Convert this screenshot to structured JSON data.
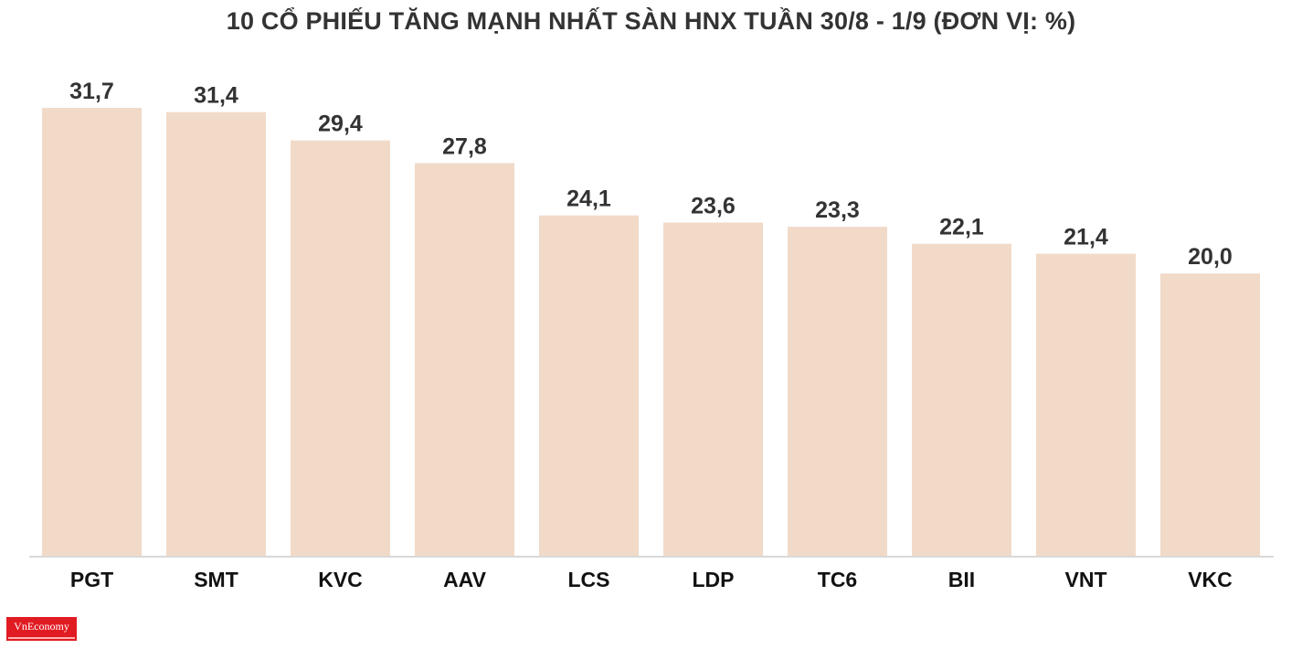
{
  "header": {
    "title": "10 CỔ PHIẾU TĂNG MẠNH NHẤT SÀN HNX TUẦN 30/8 - 1/9 (ĐƠN VỊ: %)"
  },
  "brand": {
    "logo_text": "VnEconomy"
  },
  "colors": {
    "bar": "#f1dac8",
    "axis": "#d9d9d9",
    "brand": "#e11b22"
  },
  "chart_data": {
    "type": "bar",
    "title": "10 CỔ PHIẾU TĂNG MẠNH NHẤT SÀN HNX TUẦN 30/8 - 1/9 (ĐƠN VỊ: %)",
    "categories": [
      "PGT",
      "SMT",
      "KVC",
      "AAV",
      "LCS",
      "LDP",
      "TC6",
      "BII",
      "VNT",
      "VKC"
    ],
    "values": [
      31.7,
      31.4,
      29.4,
      27.8,
      24.1,
      23.6,
      23.3,
      22.1,
      21.4,
      20.0
    ],
    "value_labels": [
      "31,7",
      "31,4",
      "29,4",
      "27,8",
      "24,1",
      "23,6",
      "23,3",
      "22,1",
      "21,4",
      "20,0"
    ],
    "xlabel": "",
    "ylabel": "",
    "ylim": [
      0,
      31.7
    ],
    "grid": false,
    "legend": "none"
  }
}
